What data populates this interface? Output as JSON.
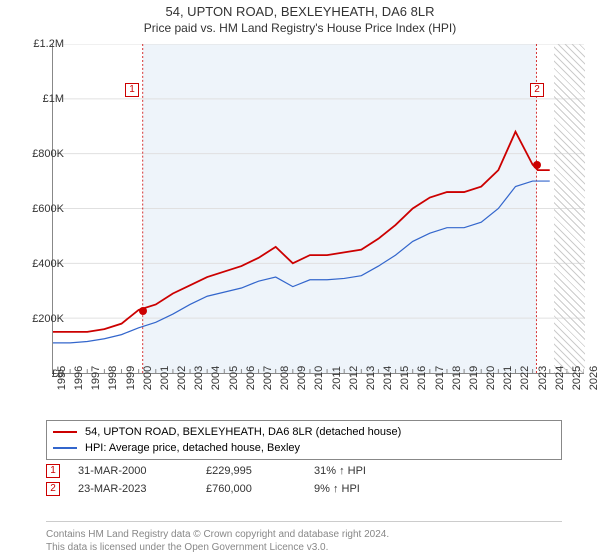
{
  "title": "54, UPTON ROAD, BEXLEYHEATH, DA6 8LR",
  "subtitle": "Price paid vs. HM Land Registry's House Price Index (HPI)",
  "chart": {
    "type": "line",
    "xlim": [
      1995,
      2026
    ],
    "ylim": [
      0,
      1200000
    ],
    "ytick_step": 200000,
    "y_ticks": [
      "£0",
      "£200K",
      "£400K",
      "£600K",
      "£800K",
      "£1M",
      "£1.2M"
    ],
    "x_ticks": [
      1995,
      1996,
      1997,
      1998,
      1999,
      2000,
      2001,
      2002,
      2003,
      2004,
      2005,
      2006,
      2007,
      2008,
      2009,
      2010,
      2011,
      2012,
      2013,
      2014,
      2015,
      2016,
      2017,
      2018,
      2019,
      2020,
      2021,
      2022,
      2023,
      2024,
      2025,
      2026
    ],
    "grid_color": "#e0e0e0",
    "background_color": "#ffffff",
    "shade_color": "#eef4fa",
    "hatch_color": "#cccccc",
    "series": [
      {
        "name": "property",
        "label": "54, UPTON ROAD, BEXLEYHEATH, DA6 8LR (detached house)",
        "color": "#cc0000",
        "width": 1.8,
        "data": [
          [
            1995,
            150000
          ],
          [
            1996,
            150000
          ],
          [
            1997,
            150000
          ],
          [
            1998,
            160000
          ],
          [
            1999,
            180000
          ],
          [
            2000,
            229995
          ],
          [
            2001,
            250000
          ],
          [
            2002,
            290000
          ],
          [
            2003,
            320000
          ],
          [
            2004,
            350000
          ],
          [
            2005,
            370000
          ],
          [
            2006,
            390000
          ],
          [
            2007,
            420000
          ],
          [
            2008,
            460000
          ],
          [
            2009,
            400000
          ],
          [
            2010,
            430000
          ],
          [
            2011,
            430000
          ],
          [
            2012,
            440000
          ],
          [
            2013,
            450000
          ],
          [
            2014,
            490000
          ],
          [
            2015,
            540000
          ],
          [
            2016,
            600000
          ],
          [
            2017,
            640000
          ],
          [
            2018,
            660000
          ],
          [
            2019,
            660000
          ],
          [
            2020,
            680000
          ],
          [
            2021,
            740000
          ],
          [
            2022,
            880000
          ],
          [
            2023,
            760000
          ],
          [
            2023.3,
            740000
          ],
          [
            2024,
            740000
          ]
        ]
      },
      {
        "name": "hpi",
        "label": "HPI: Average price, detached house, Bexley",
        "color": "#3366cc",
        "width": 1.2,
        "data": [
          [
            1995,
            110000
          ],
          [
            1996,
            110000
          ],
          [
            1997,
            115000
          ],
          [
            1998,
            125000
          ],
          [
            1999,
            140000
          ],
          [
            2000,
            165000
          ],
          [
            2001,
            185000
          ],
          [
            2002,
            215000
          ],
          [
            2003,
            250000
          ],
          [
            2004,
            280000
          ],
          [
            2005,
            295000
          ],
          [
            2006,
            310000
          ],
          [
            2007,
            335000
          ],
          [
            2008,
            350000
          ],
          [
            2009,
            315000
          ],
          [
            2010,
            340000
          ],
          [
            2011,
            340000
          ],
          [
            2012,
            345000
          ],
          [
            2013,
            355000
          ],
          [
            2014,
            390000
          ],
          [
            2015,
            430000
          ],
          [
            2016,
            480000
          ],
          [
            2017,
            510000
          ],
          [
            2018,
            530000
          ],
          [
            2019,
            530000
          ],
          [
            2020,
            550000
          ],
          [
            2021,
            600000
          ],
          [
            2022,
            680000
          ],
          [
            2023,
            700000
          ],
          [
            2024,
            700000
          ]
        ]
      }
    ],
    "markers": [
      {
        "num": "1",
        "color": "#cc0000",
        "label_x": 1999.2,
        "label_y": 1060000,
        "dot_x": 2000.24,
        "dot_y": 229995
      },
      {
        "num": "2",
        "color": "#cc0000",
        "label_x": 2022.8,
        "label_y": 1060000,
        "dot_x": 2023.22,
        "dot_y": 760000
      }
    ],
    "shade_ranges": [
      [
        2000.24,
        2023.22
      ]
    ],
    "hatch_ranges": [
      [
        2024.2,
        2026
      ]
    ]
  },
  "transactions": [
    {
      "num": "1",
      "date": "31-MAR-2000",
      "price": "£229,995",
      "delta": "31% ↑ HPI",
      "color": "#cc0000"
    },
    {
      "num": "2",
      "date": "23-MAR-2023",
      "price": "£760,000",
      "delta": "9% ↑ HPI",
      "color": "#cc0000"
    }
  ],
  "attribution": {
    "line1": "Contains HM Land Registry data © Crown copyright and database right 2024.",
    "line2": "This data is licensed under the Open Government Licence v3.0."
  }
}
